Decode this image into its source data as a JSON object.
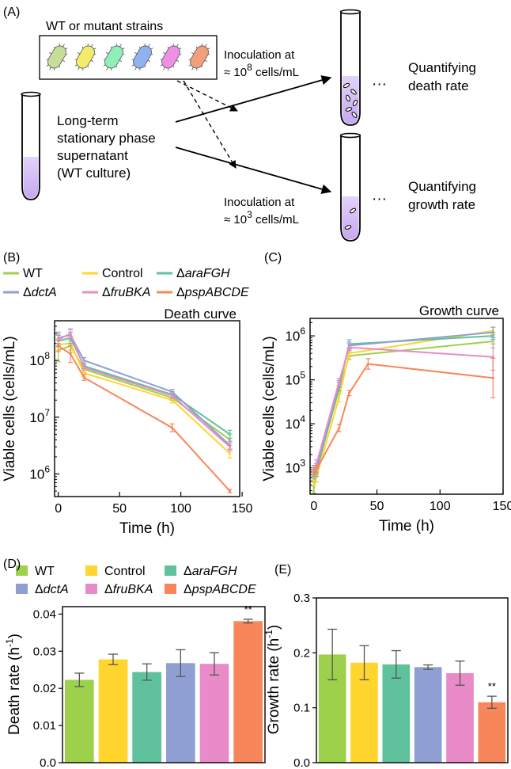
{
  "panel_a": {
    "label": "(A)",
    "strains_box": "WT or mutant strains",
    "supernatant_lines": [
      "Long-term",
      "stationary phase",
      "supernatant",
      "(WT culture)"
    ],
    "inoc_high": [
      "Inoculation at",
      "≈ 10",
      "8",
      " cells/mL"
    ],
    "inoc_low": [
      "Inoculation at",
      "≈ 10",
      "3",
      " cells/mL"
    ],
    "death_lines": [
      "Quantifying",
      "death rate"
    ],
    "growth_lines": [
      "Quantifying",
      "growth rate"
    ],
    "ellipsis": "···",
    "strain_colors": [
      "#c7dd9a",
      "#f3ec6a",
      "#8ef0b6",
      "#8fb3ee",
      "#ee8fe4",
      "#f2a07a"
    ]
  },
  "legend": {
    "strains": [
      {
        "name": "WT",
        "prefix": "",
        "italic": "",
        "color": "#9ed14b"
      },
      {
        "name": "Control",
        "prefix": "",
        "italic": "",
        "color": "#ffd52e"
      },
      {
        "name": "ΔaraFGH",
        "prefix": "Δ",
        "italic": "araFGH",
        "color": "#5fc29d"
      },
      {
        "name": "ΔdctA",
        "prefix": "Δ",
        "italic": "dctA",
        "color": "#8f9fd3"
      },
      {
        "name": "ΔfruBKA",
        "prefix": "Δ",
        "italic": "fruBKA",
        "color": "#e98ac9"
      },
      {
        "name": "ΔpspABCDE",
        "prefix": "Δ",
        "italic": "pspABCDE",
        "color": "#f7875a"
      }
    ]
  },
  "chart_data": [
    {
      "panel": "(B)",
      "type": "line",
      "title": "Death curve",
      "xlabel": "Time (h)",
      "ylabel": "Viable cells (cells/mL)",
      "yscale": "log",
      "xlim": [
        -3,
        148
      ],
      "ylim": [
        400000,
        500000000
      ],
      "xticks": [
        0,
        50,
        100,
        150
      ],
      "yticks": [
        1000000,
        10000000,
        100000000
      ],
      "ytick_labels": [
        [
          "10",
          "6"
        ],
        [
          "10",
          "7"
        ],
        [
          "10",
          "8"
        ]
      ],
      "series": [
        {
          "name": "WT",
          "x": [
            0,
            10,
            21,
            93,
            140
          ],
          "y": [
            150000000,
            180000000,
            70000000,
            22000000,
            4000000
          ],
          "err": [
            0.2,
            0.12,
            0.06,
            0.05,
            0.1
          ]
        },
        {
          "name": "Control",
          "x": [
            0,
            10,
            21,
            93,
            140
          ],
          "y": [
            190000000,
            200000000,
            60000000,
            20000000,
            2300000
          ],
          "err": [
            0.1,
            0.12,
            0.06,
            0.05,
            0.08
          ]
        },
        {
          "name": "ΔaraFGH",
          "x": [
            0,
            10,
            21,
            93,
            140
          ],
          "y": [
            220000000,
            250000000,
            80000000,
            25000000,
            5000000
          ],
          "err": [
            0.1,
            0.1,
            0.05,
            0.05,
            0.07
          ]
        },
        {
          "name": "ΔdctA",
          "x": [
            0,
            10,
            21,
            93,
            140
          ],
          "y": [
            250000000,
            280000000,
            100000000,
            28000000,
            3200000
          ],
          "err": [
            0.1,
            0.1,
            0.05,
            0.04,
            0.07
          ]
        },
        {
          "name": "ΔfruBKA",
          "x": [
            0,
            10,
            21,
            93,
            140
          ],
          "y": [
            230000000,
            300000000,
            75000000,
            24000000,
            3000000
          ],
          "err": [
            0.1,
            0.08,
            0.05,
            0.05,
            0.07
          ]
        },
        {
          "name": "ΔpspABCDE",
          "x": [
            0,
            10,
            21,
            93,
            140
          ],
          "y": [
            180000000,
            130000000,
            50000000,
            6500000,
            500000
          ],
          "err": [
            0.1,
            0.15,
            0.05,
            0.07,
            0.03
          ]
        }
      ]
    },
    {
      "panel": "(C)",
      "type": "line",
      "title": "Growth curve",
      "xlabel": "Time (h)",
      "ylabel": "Viable cells (cells/mL)",
      "yscale": "log",
      "xlim": [
        -3,
        150
      ],
      "ylim": [
        250,
        2500000
      ],
      "xticks": [
        0,
        50,
        100,
        150
      ],
      "yticks": [
        1000,
        10000,
        100000,
        1000000
      ],
      "ytick_labels": [
        [
          "10",
          "3"
        ],
        [
          "10",
          "4"
        ],
        [
          "10",
          "5"
        ],
        [
          "10",
          "6"
        ]
      ],
      "series": [
        {
          "name": "WT",
          "x": [
            0,
            2,
            20,
            28,
            142
          ],
          "y": [
            350,
            900,
            60000,
            350000,
            750000
          ],
          "err": [
            0.12,
            0.1,
            0.1,
            0.08,
            0.15
          ]
        },
        {
          "name": "Control",
          "x": [
            0,
            2,
            20,
            28,
            142
          ],
          "y": [
            500,
            600,
            40000,
            400000,
            1300000
          ],
          "err": [
            0.12,
            0.1,
            0.1,
            0.08,
            0.08
          ]
        },
        {
          "name": "ΔaraFGH",
          "x": [
            0,
            2,
            20,
            28,
            142
          ],
          "y": [
            700,
            800,
            70000,
            650000,
            1000000
          ],
          "err": [
            0.1,
            0.1,
            0.1,
            0.1,
            0.08
          ]
        },
        {
          "name": "ΔdctA",
          "x": [
            0,
            2,
            20,
            28,
            142
          ],
          "y": [
            900,
            1000,
            80000,
            600000,
            1200000
          ],
          "err": [
            0.1,
            0.1,
            0.08,
            0.08,
            0.12
          ]
        },
        {
          "name": "ΔfruBKA",
          "x": [
            0,
            2,
            20,
            28,
            142
          ],
          "y": [
            800,
            1200,
            90000,
            550000,
            330000
          ],
          "err": [
            0.1,
            0.1,
            0.08,
            0.08,
            0.3
          ]
        },
        {
          "name": "ΔpspABCDE",
          "x": [
            0,
            2,
            20,
            28,
            43,
            142
          ],
          "y": [
            800,
            900,
            8000,
            50000,
            230000,
            110000
          ],
          "err": [
            0.1,
            0.1,
            0.08,
            0.06,
            0.12,
            0.45
          ]
        }
      ]
    },
    {
      "panel": "(D)",
      "type": "bar",
      "title": "",
      "xlabel": "",
      "ylabel": "Death rate (h",
      "ylabel_sup": "-1",
      "ylim": [
        0,
        0.042
      ],
      "yticks": [
        0.0,
        0.01,
        0.02,
        0.03,
        0.04
      ],
      "ytick_labels": [
        "0.0",
        "0.01",
        "0.02",
        "0.03",
        "0.04"
      ],
      "categories": [
        "WT",
        "Control",
        "ΔaraFGH",
        "ΔdctA",
        "ΔfruBKA",
        "ΔpspABCDE"
      ],
      "values": [
        0.0223,
        0.0278,
        0.0244,
        0.0268,
        0.0266,
        0.0381
      ],
      "errors": [
        0.0018,
        0.0014,
        0.0022,
        0.0036,
        0.003,
        0.0005
      ],
      "annotations": [
        {
          "category": "ΔpspABCDE",
          "text": "**"
        }
      ]
    },
    {
      "panel": "(E)",
      "type": "bar",
      "title": "",
      "xlabel": "",
      "ylabel": "Growth rate (h",
      "ylabel_sup": "-1",
      "ylim": [
        0,
        0.3
      ],
      "yticks": [
        0.0,
        0.1,
        0.2,
        0.3
      ],
      "ytick_labels": [
        "0.0",
        "0.1",
        "0.2",
        "0.3"
      ],
      "categories": [
        "WT",
        "Control",
        "ΔaraFGH",
        "ΔdctA",
        "ΔfruBKA",
        "ΔpspABCDE"
      ],
      "values": [
        0.197,
        0.182,
        0.179,
        0.174,
        0.163,
        0.11
      ],
      "errors": [
        0.046,
        0.031,
        0.025,
        0.004,
        0.022,
        0.011
      ],
      "annotations": [
        {
          "category": "ΔpspABCDE",
          "text": "**"
        }
      ]
    }
  ]
}
